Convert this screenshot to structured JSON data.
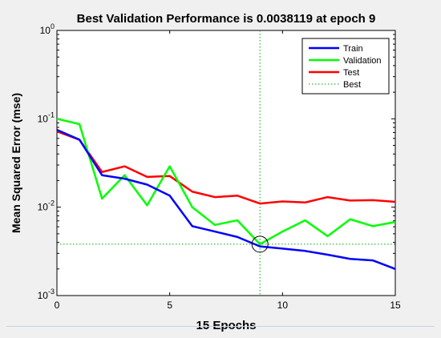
{
  "chart_data": {
    "type": "line",
    "title": "Best Validation Performance is 0.0038119 at epoch 9",
    "xlabel": "15 Epochs",
    "ylabel": "Mean Squared Error  (mse)",
    "xlim": [
      0,
      15
    ],
    "ylim": [
      0.001,
      1
    ],
    "yscale": "log",
    "x_ticks": [
      "0",
      "5",
      "10",
      "15"
    ],
    "y_ticks": [
      {
        "base": "10",
        "exp": "-3"
      },
      {
        "base": "10",
        "exp": "-2"
      },
      {
        "base": "10",
        "exp": "-1"
      },
      {
        "base": "10",
        "exp": "0"
      }
    ],
    "grid": false,
    "legend_position": "top-right",
    "x": [
      0,
      1,
      2,
      3,
      4,
      5,
      6,
      7,
      8,
      9,
      10,
      11,
      12,
      13,
      14,
      15
    ],
    "series": [
      {
        "name": "Train",
        "color": "#0000ff",
        "values": [
          0.075,
          0.058,
          0.023,
          0.021,
          0.018,
          0.0135,
          0.0061,
          0.0053,
          0.0046,
          0.0036,
          0.0034,
          0.0032,
          0.0029,
          0.0026,
          0.0025,
          0.002
        ]
      },
      {
        "name": "Validation",
        "color": "#00ff00",
        "values": [
          0.1,
          0.087,
          0.0125,
          0.023,
          0.0105,
          0.029,
          0.01,
          0.0063,
          0.0071,
          0.0038119,
          0.0053,
          0.0071,
          0.0047,
          0.0073,
          0.0061,
          0.0068
        ]
      },
      {
        "name": "Test",
        "color": "#ff0000",
        "values": [
          0.072,
          0.058,
          0.025,
          0.029,
          0.022,
          0.0225,
          0.015,
          0.013,
          0.0135,
          0.011,
          0.0116,
          0.0113,
          0.013,
          0.0119,
          0.012,
          0.0115
        ]
      }
    ],
    "best": {
      "name": "Best",
      "color": "#00aa00",
      "epoch": 9,
      "value": 0.0038119
    }
  }
}
